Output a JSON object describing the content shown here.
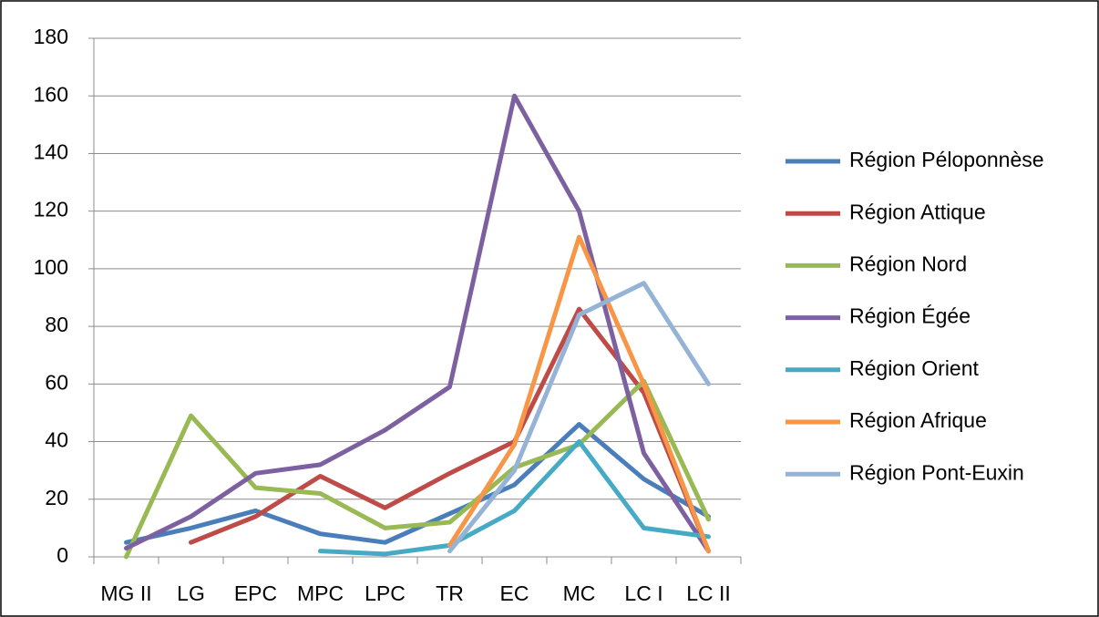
{
  "chart_data": {
    "type": "line",
    "categories": [
      "MG II",
      "LG",
      "EPC",
      "MPC",
      "LPC",
      "TR",
      "EC",
      "MC",
      "LC I",
      "LC II"
    ],
    "series": [
      {
        "name": "Région Péloponnèse",
        "color": "#4a7ebb",
        "values": [
          5,
          10,
          16,
          8,
          5,
          15,
          25,
          46,
          27,
          14
        ]
      },
      {
        "name": "Région Attique",
        "color": "#be4b48",
        "values": [
          null,
          5,
          14,
          28,
          17,
          29,
          40,
          86,
          57,
          2
        ]
      },
      {
        "name": "Région Nord",
        "color": "#98b954",
        "values": [
          0,
          49,
          24,
          22,
          10,
          12,
          31,
          39,
          61,
          13
        ]
      },
      {
        "name": "Région Égée",
        "color": "#7d60a0",
        "values": [
          3,
          14,
          29,
          32,
          44,
          59,
          160,
          120,
          36,
          2
        ]
      },
      {
        "name": "Région Orient",
        "color": "#46aac5",
        "values": [
          null,
          null,
          null,
          2,
          1,
          4,
          16,
          40,
          10,
          7
        ]
      },
      {
        "name": "Région Afrique",
        "color": "#f79646",
        "values": [
          null,
          null,
          null,
          null,
          null,
          4,
          39,
          111,
          60,
          2
        ]
      },
      {
        "name": "Région Pont-Euxin",
        "color": "#95b3d7",
        "values": [
          null,
          null,
          null,
          null,
          null,
          2,
          30,
          84,
          95,
          60
        ]
      }
    ],
    "ylim": [
      0,
      180
    ],
    "yticks": [
      0,
      20,
      40,
      60,
      80,
      100,
      120,
      140,
      160,
      180
    ],
    "grid": true,
    "legend": "right"
  }
}
